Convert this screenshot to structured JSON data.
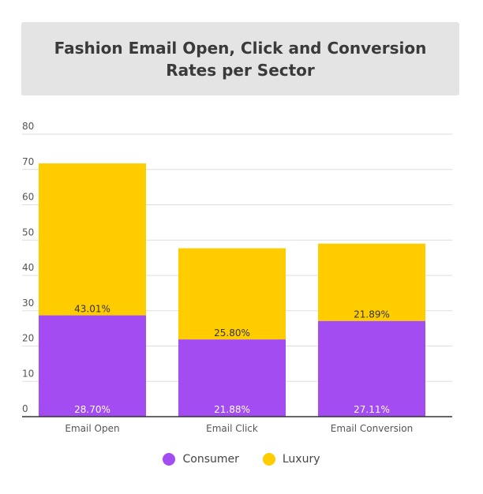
{
  "chart_data": {
    "type": "bar",
    "stacked": true,
    "title": "Fashion Email Open, Click and Conversion Rates per Sector",
    "categories": [
      "Email Open",
      "Email Click",
      "Email Conversion"
    ],
    "series": [
      {
        "name": "Consumer",
        "values": [
          28.7,
          21.88,
          27.11
        ],
        "labels": [
          "28.70%",
          "21.88%",
          "27.11%"
        ],
        "color": "#a24cf2"
      },
      {
        "name": "Luxury",
        "values": [
          43.01,
          25.8,
          21.89
        ],
        "labels": [
          "43.01%",
          "25.80%",
          "21.89%"
        ],
        "color": "#ffcc00"
      }
    ],
    "ylim": [
      0,
      80
    ],
    "yticks": [
      0,
      10,
      20,
      30,
      40,
      50,
      60,
      70,
      80
    ],
    "grid": true,
    "legend": "bottom"
  },
  "colors": {
    "grid": "#dddddd",
    "axis": "#333333",
    "tick_text": "#555555",
    "label_on_consumer": "#ffffff",
    "label_on_luxury": "#333333"
  }
}
